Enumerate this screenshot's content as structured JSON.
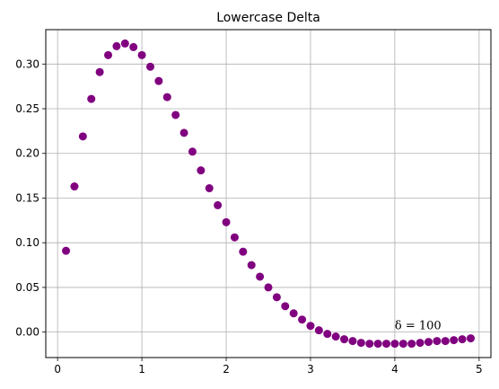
{
  "chart_data": {
    "type": "scatter",
    "title": "Lowercase Delta",
    "xlabel": "",
    "ylabel": "",
    "xlim": [
      -0.14,
      5.14
    ],
    "ylim": [
      -0.0285,
      0.3385
    ],
    "xticks": [
      0,
      1,
      2,
      3,
      4,
      5
    ],
    "xtick_labels": [
      "0",
      "1",
      "2",
      "3",
      "4",
      "5"
    ],
    "yticks": [
      0.0,
      0.05,
      0.1,
      0.15,
      0.2,
      0.25,
      0.3
    ],
    "ytick_labels": [
      "0.00",
      "0.05",
      "0.10",
      "0.15",
      "0.20",
      "0.25",
      "0.30"
    ],
    "grid": true,
    "marker_color": "#800080",
    "annotation": {
      "text": "δ = 100",
      "x": 4.0,
      "y": 0.003
    },
    "series": [
      {
        "x": [
          0.1,
          0.2,
          0.3,
          0.4,
          0.5,
          0.6,
          0.7,
          0.8,
          0.9,
          1.0,
          1.1,
          1.2,
          1.3,
          1.4,
          1.5,
          1.6,
          1.7,
          1.8,
          1.9,
          2.0,
          2.1,
          2.2,
          2.3,
          2.4,
          2.5,
          2.6,
          2.7,
          2.8,
          2.9,
          3.0,
          3.1,
          3.2,
          3.3,
          3.4,
          3.5,
          3.6,
          3.7,
          3.8,
          3.9,
          4.0,
          4.1,
          4.2,
          4.3,
          4.4,
          4.5,
          4.6,
          4.7,
          4.8,
          4.9
        ],
        "y": [
          0.091,
          0.163,
          0.219,
          0.261,
          0.291,
          0.31,
          0.32,
          0.323,
          0.319,
          0.31,
          0.297,
          0.281,
          0.263,
          0.243,
          0.223,
          0.202,
          0.181,
          0.161,
          0.142,
          0.123,
          0.106,
          0.09,
          0.075,
          0.062,
          0.05,
          0.039,
          0.029,
          0.021,
          0.014,
          0.007,
          0.002,
          -0.002,
          -0.005,
          -0.008,
          -0.01,
          -0.012,
          -0.013,
          -0.013,
          -0.013,
          -0.013,
          -0.013,
          -0.013,
          -0.012,
          -0.011,
          -0.01,
          -0.01,
          -0.009,
          -0.008,
          -0.007
        ]
      }
    ]
  }
}
